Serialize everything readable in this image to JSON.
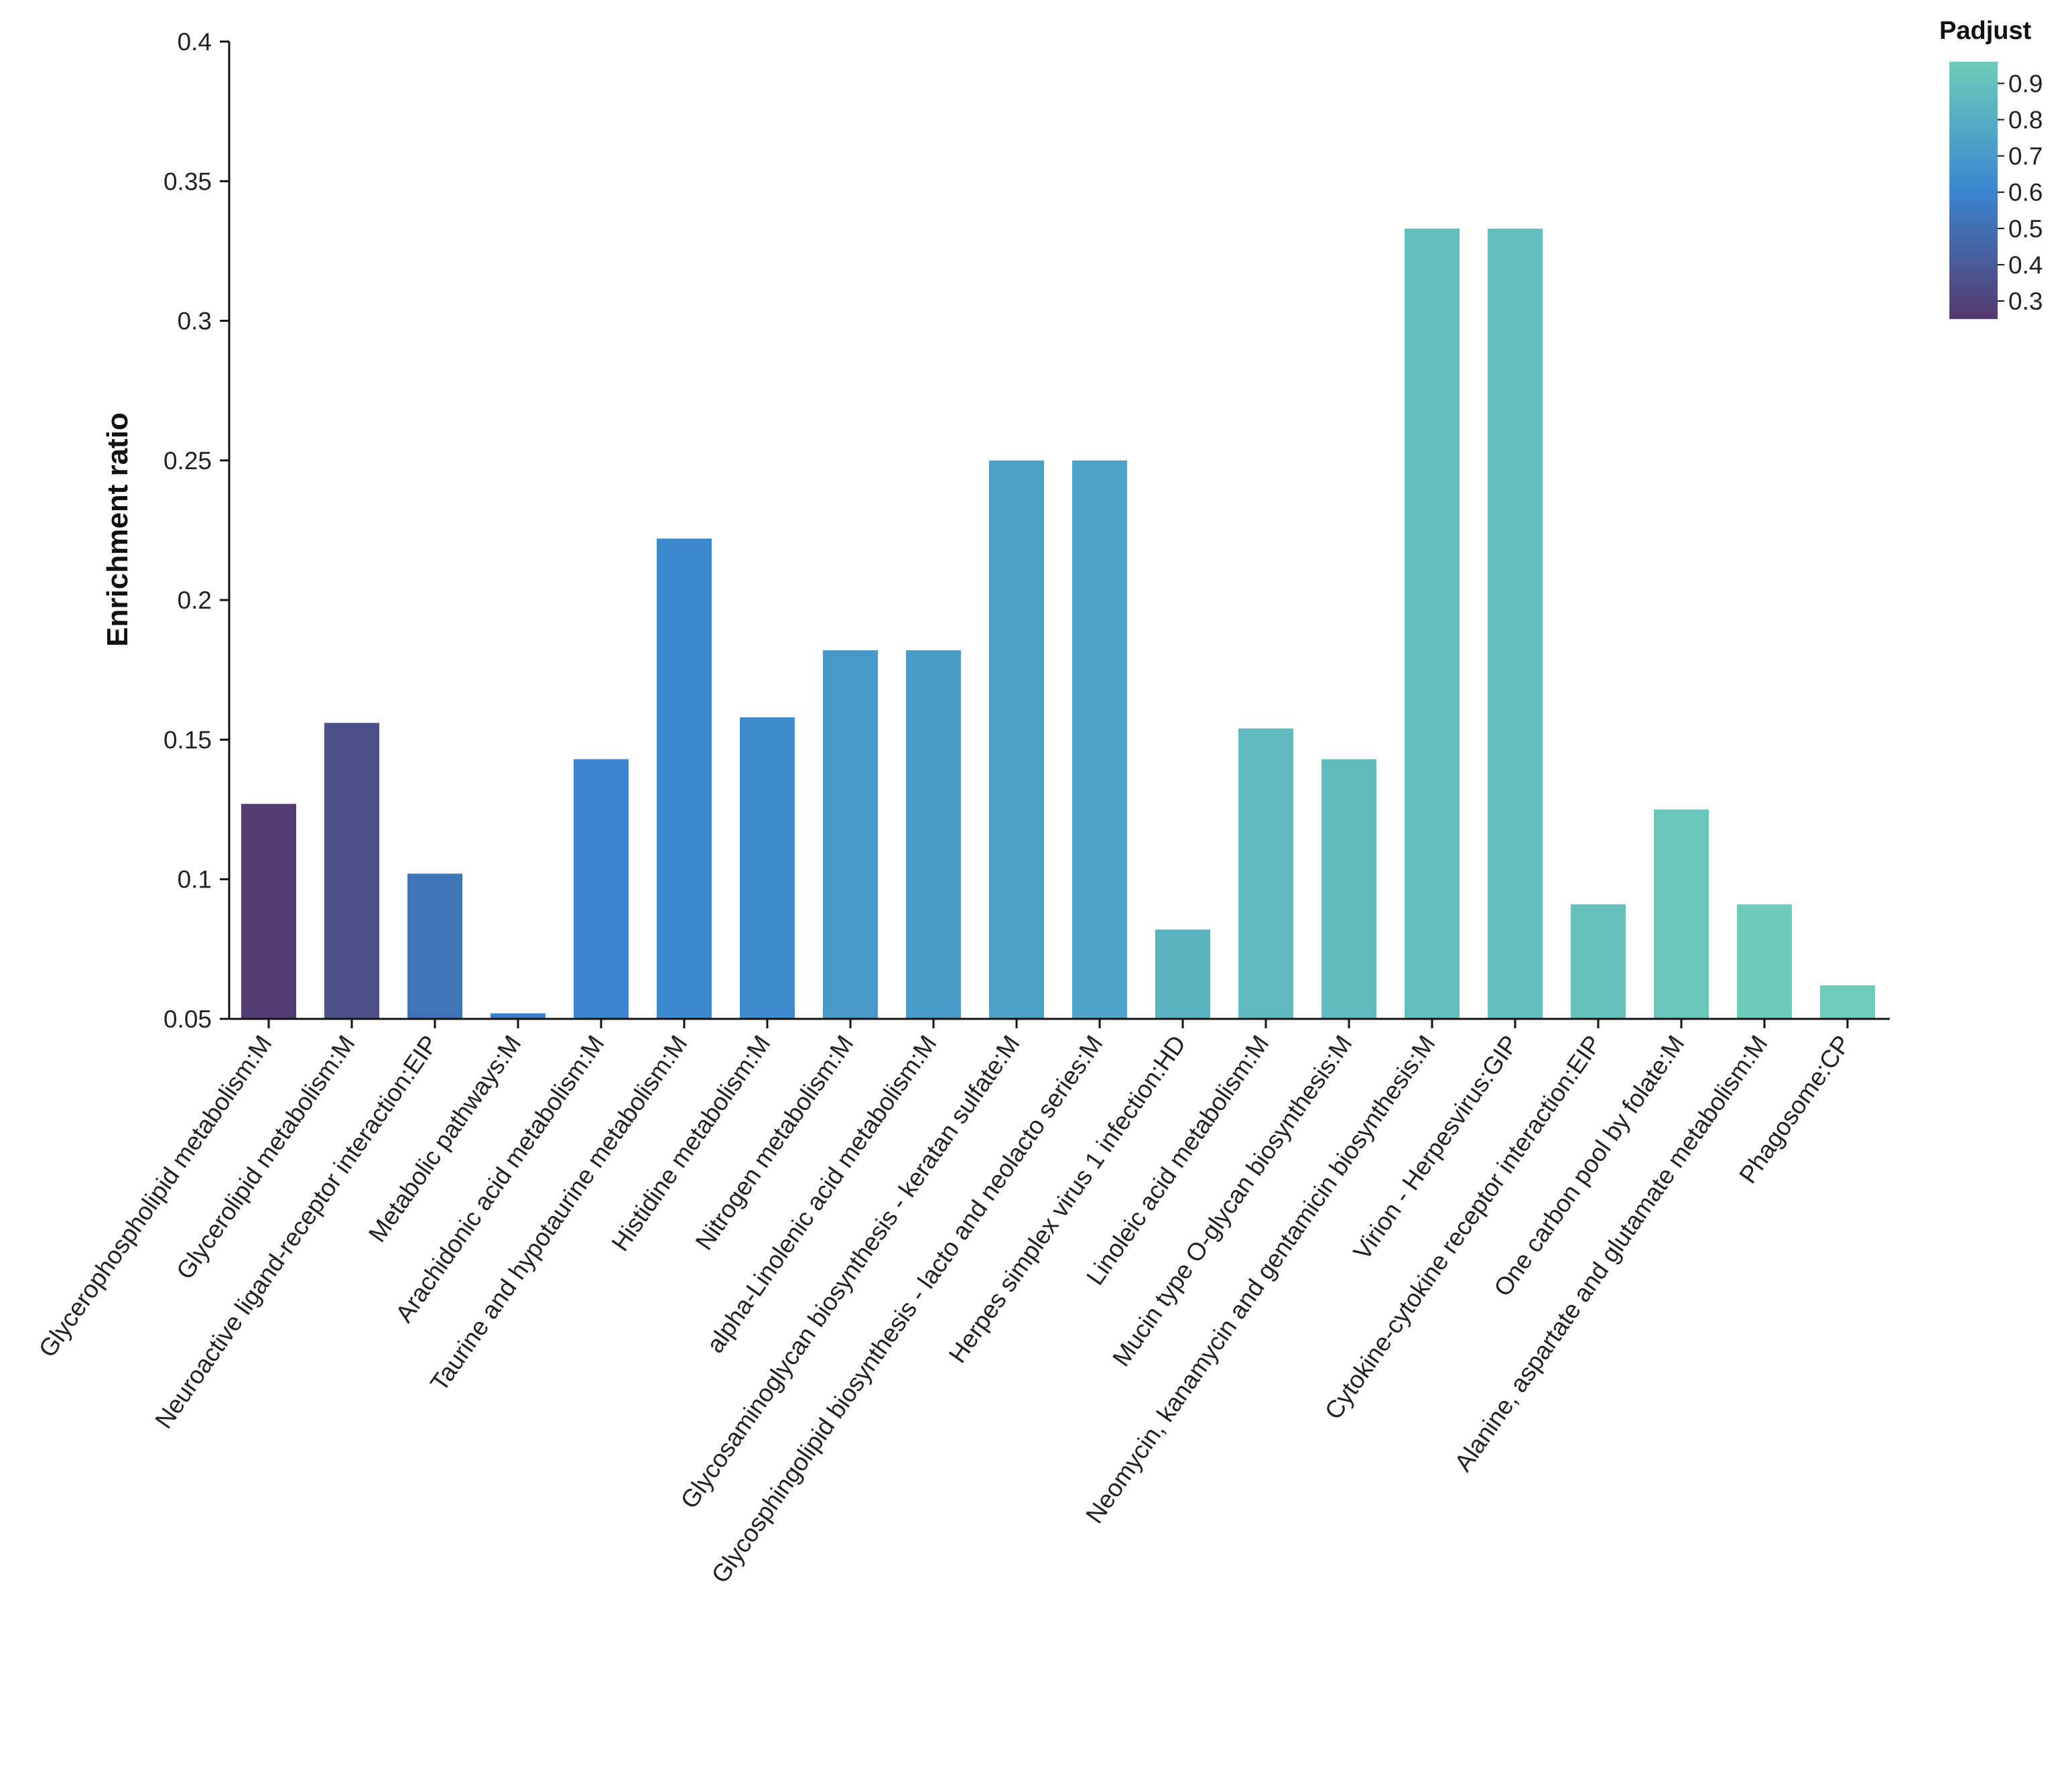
{
  "chart_data": {
    "type": "bar",
    "title": "",
    "xlabel": "",
    "ylabel": "Enrichment ratio",
    "ylim": [
      0.05,
      0.4
    ],
    "yticks": [
      "0.05",
      "0.1",
      "0.15",
      "0.2",
      "0.25",
      "0.3",
      "0.35",
      "0.4"
    ],
    "categories": [
      "Glycerophospholipid metabolism:M",
      "Glycerolipid metabolism:M",
      "Neuroactive ligand-receptor interaction:EIP",
      "Metabolic pathways:M",
      "Arachidonic acid metabolism:M",
      "Taurine and hypotaurine metabolism:M",
      "Histidine metabolism:M",
      "Nitrogen metabolism:M",
      "alpha-Linolenic acid metabolism:M",
      "Glycosaminoglycan biosynthesis - keratan sulfate:M",
      "Glycosphingolipid biosynthesis - lacto and neolacto series:M",
      "Herpes simplex virus 1 infection:HD",
      "Linoleic acid metabolism:M",
      "Mucin type O-glycan biosynthesis:M",
      "Neomycin, kanamycin and gentamicin biosynthesis:M",
      "Virion - Herpesvirus:GIP",
      "Cytokine-cytokine receptor interaction:EIP",
      "One carbon pool by folate:M",
      "Alanine, aspartate and glutamate metabolism:M",
      "Phagosome:CP"
    ],
    "values": [
      0.127,
      0.156,
      0.102,
      0.052,
      0.143,
      0.222,
      0.158,
      0.182,
      0.182,
      0.25,
      0.25,
      0.082,
      0.154,
      0.143,
      0.333,
      0.333,
      0.091,
      0.125,
      0.091,
      0.062
    ],
    "padjust": [
      0.27,
      0.35,
      0.52,
      0.58,
      0.6,
      0.62,
      0.63,
      0.7,
      0.71,
      0.74,
      0.75,
      0.83,
      0.86,
      0.87,
      0.88,
      0.88,
      0.9,
      0.93,
      0.95,
      0.97
    ],
    "legend": {
      "title": "Padjust",
      "placement": "top-right",
      "range": [
        0.25,
        0.96
      ],
      "ticks": [
        "0.9",
        "0.8",
        "0.7",
        "0.6",
        "0.5",
        "0.4",
        "0.3"
      ],
      "colors": {
        "low": "#55396e",
        "mid": "#3a86cf",
        "high": "#6ecdb8"
      }
    }
  }
}
